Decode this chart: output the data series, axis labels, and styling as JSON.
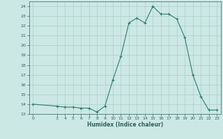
{
  "xlabel": "Humidex (Indice chaleur)",
  "x_values": [
    0,
    3,
    4,
    5,
    6,
    7,
    8,
    9,
    10,
    11,
    12,
    13,
    14,
    15,
    16,
    17,
    18,
    19,
    20,
    21,
    22,
    23
  ],
  "y_values": [
    14,
    13.8,
    13.7,
    13.7,
    13.6,
    13.6,
    13.2,
    13.8,
    16.5,
    18.9,
    22.3,
    22.8,
    22.3,
    24.0,
    23.2,
    23.2,
    22.7,
    20.8,
    17.0,
    14.8,
    13.4,
    13.4
  ],
  "line_color": "#2e7d6e",
  "bg_color": "#cce8e4",
  "grid_color": "#aacfca",
  "tick_label_color": "#2e6060",
  "ylim": [
    13,
    24.5
  ],
  "xlim": [
    -0.5,
    23.5
  ],
  "yticks": [
    13,
    14,
    15,
    16,
    17,
    18,
    19,
    20,
    21,
    22,
    23,
    24
  ],
  "xticks": [
    0,
    3,
    4,
    5,
    6,
    7,
    8,
    9,
    10,
    11,
    12,
    13,
    14,
    15,
    16,
    17,
    18,
    19,
    20,
    21,
    22,
    23
  ]
}
